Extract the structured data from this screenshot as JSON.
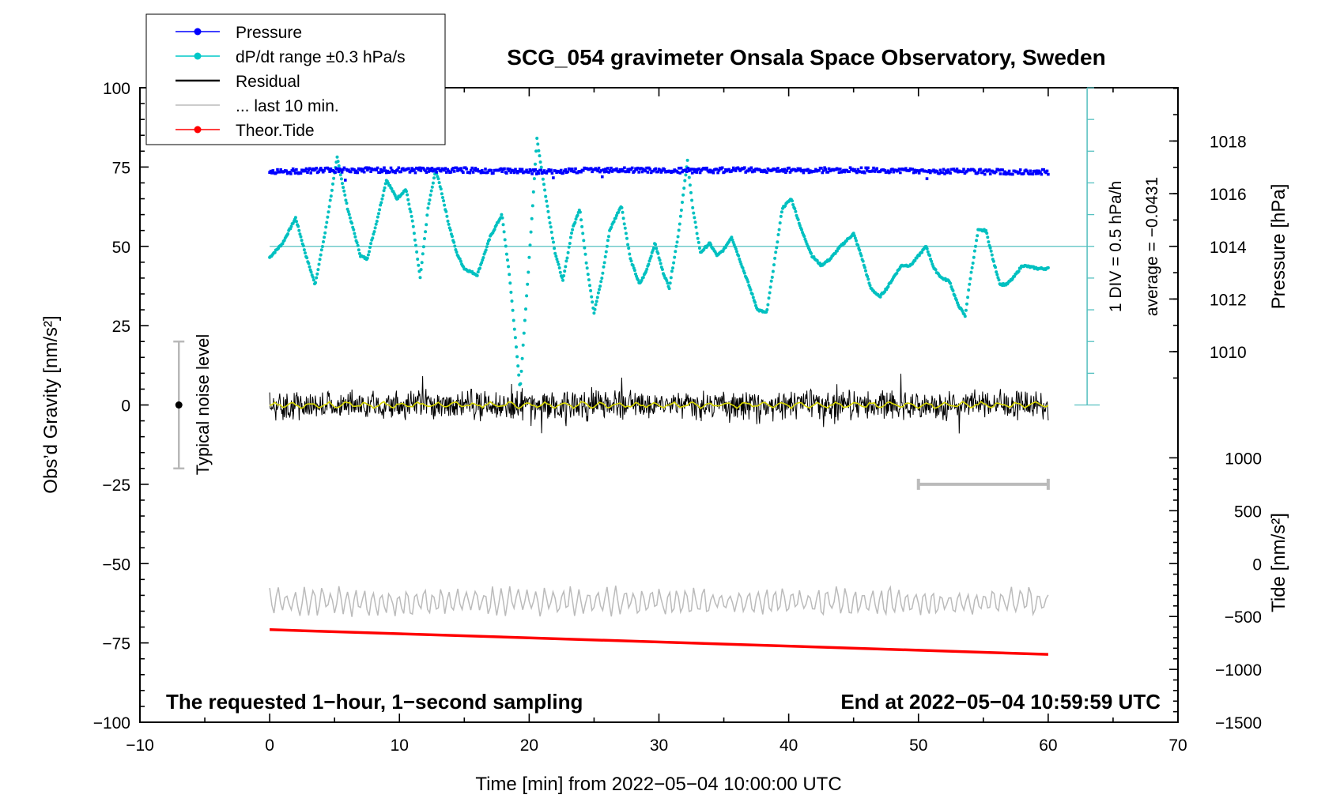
{
  "chart_data": {
    "type": "line",
    "title": "SCG_054 gravimeter Onsala Space Observatory, Sweden",
    "xlabel": "Time [min] from 2022−05−04 10:00:00 UTC",
    "ylabel_left": "Obs’d Gravity [nm/s²]",
    "ylabel_right_pressure": "Pressure [hPa]",
    "ylabel_right_tide": "Tide [nm/s²]",
    "xlim": [
      -10,
      70
    ],
    "ylim": [
      -100,
      100
    ],
    "xticks": [
      -10,
      0,
      10,
      20,
      30,
      40,
      50,
      60,
      70
    ],
    "xtick_labels": [
      "−10",
      "0",
      "10",
      "20",
      "30",
      "40",
      "50",
      "60",
      "70"
    ],
    "yticks": [
      -100,
      -75,
      -50,
      -25,
      0,
      25,
      50,
      75,
      100
    ],
    "ytick_labels": [
      "−100",
      "−75",
      "−50",
      "−25",
      "0",
      "25",
      "50",
      "75",
      "100"
    ],
    "pressure_axis": {
      "ticks": [
        1010,
        1012,
        1014,
        1016,
        1018
      ],
      "tick_labels": [
        "1010",
        "1012",
        "1014",
        "1016",
        "1018"
      ],
      "grav_at_1014": 50,
      "units_per_hpa": 8.3
    },
    "tide_axis": {
      "ticks": [
        -1500,
        -1000,
        -500,
        0,
        500,
        1000
      ],
      "tick_labels": [
        "−1500",
        "−1000",
        "−500",
        "0",
        "500",
        "1000"
      ],
      "grav_at_zero": -50,
      "units_per_500": 16.67
    },
    "annotations": {
      "bottom_left": "The requested 1−hour, 1−second sampling",
      "bottom_right": "End at 2022−05−04 10:59:59 UTC",
      "noise": "Typical noise level",
      "dpdt_scale": "1 DIV = 0.5 hPa/h",
      "dpdt_average": "average = −0.0431"
    },
    "legend": {
      "position": "top-left",
      "entries": [
        {
          "label": "Pressure",
          "color": "#0000ff",
          "marker": true
        },
        {
          "label": "dP/dt range ±0.3 hPa/s",
          "color": "#00c8c8",
          "marker": true
        },
        {
          "label": "Residual",
          "color": "#000000",
          "marker": false
        },
        {
          "label": "... last 10 min.",
          "color": "#bbbbbb",
          "marker": false
        },
        {
          "label": "Theor.Tide",
          "color": "#ff0000",
          "marker": true
        }
      ]
    },
    "colors": {
      "pressure": "#0000ff",
      "dpdt": "#00c0c0",
      "residual": "#000000",
      "residual_smooth": "#d8d800",
      "last10": "#bbbbbb",
      "tide": "#ff0000",
      "dpdt_axis": "#55c0c0",
      "noise_bar": "#b8b8b8"
    },
    "noise_level": {
      "x": -7,
      "center": 0,
      "low": -20,
      "high": 20
    },
    "last10_range": {
      "x_start": 50,
      "x_end": 60,
      "y": -25
    },
    "dpdt_axis": {
      "x": 63,
      "y_low": 0,
      "y_high": 100,
      "reference_y": 50
    },
    "series": [
      {
        "name": "Pressure",
        "key": "pressure",
        "x": [
          0,
          5,
          10,
          15,
          20,
          25,
          30,
          33,
          35,
          40,
          45,
          50,
          55,
          60
        ],
        "y": [
          73.5,
          74,
          74,
          74,
          73.5,
          74,
          74,
          73.8,
          74,
          74,
          74,
          73.8,
          73.5,
          73.5
        ]
      },
      {
        "name": "dP/dt range ±0.3 hPa/s",
        "key": "dpdt",
        "x": [
          0,
          1,
          2,
          2.8,
          3.5,
          4.3,
          5.2,
          6,
          7,
          7.5,
          8.2,
          9,
          9.8,
          10.5,
          11,
          11.6,
          12.2,
          12.8,
          13.2,
          13.8,
          14.4,
          15,
          16,
          17,
          17.9,
          18.5,
          19.3,
          19.9,
          20.6,
          21.3,
          22,
          22.6,
          23.3,
          23.9,
          24.4,
          25,
          25.6,
          26.2,
          27.1,
          27.8,
          28.5,
          29,
          29.7,
          30.3,
          30.8,
          31.5,
          32.2,
          32.6,
          33.2,
          33.9,
          34.5,
          35,
          35.6,
          36.3,
          37,
          37.6,
          38.3,
          38.9,
          39.5,
          40.2,
          41,
          41.8,
          42.5,
          43.2,
          44,
          45,
          45.6,
          46.3,
          47,
          47.6,
          48.2,
          48.7,
          49.4,
          50,
          50.6,
          51.2,
          51.8,
          52.4,
          53,
          53.6,
          54,
          54.6,
          55.2,
          55.8,
          56.3,
          56.8,
          57.3,
          58,
          58.6,
          59.2,
          59.8,
          60
        ],
        "y": [
          46.5,
          51,
          59,
          47,
          38,
          55,
          78,
          62,
          47,
          46,
          57,
          71,
          65,
          68,
          58,
          40,
          62,
          74,
          68,
          57,
          48,
          43,
          41,
          53,
          60,
          40,
          5,
          40,
          84,
          65,
          48,
          39,
          55,
          62,
          45,
          29,
          40,
          55,
          63,
          46,
          38,
          42,
          51,
          42,
          37,
          54,
          77,
          62,
          48,
          51,
          47,
          49,
          53,
          45,
          37,
          30,
          29,
          45,
          62,
          65,
          55,
          47,
          44,
          46,
          50,
          54,
          47,
          37,
          34,
          37,
          41,
          44,
          44,
          47,
          50,
          43,
          40,
          39,
          32,
          28,
          40,
          55,
          55,
          45,
          38,
          38,
          40,
          44,
          43.5,
          43,
          43,
          43
        ]
      },
      {
        "name": "Residual",
        "key": "residual",
        "x_start": 0,
        "x_end": 60,
        "center": 0,
        "amplitude": 3.8
      },
      {
        "name": "... last 10 min.",
        "key": "last10",
        "x_start": 0,
        "x_end": 60,
        "center": -62,
        "amplitude": 4
      },
      {
        "name": "Theor.Tide",
        "key": "tide",
        "x": [
          0,
          60
        ],
        "y": [
          -70.8,
          -78.6
        ]
      }
    ]
  }
}
